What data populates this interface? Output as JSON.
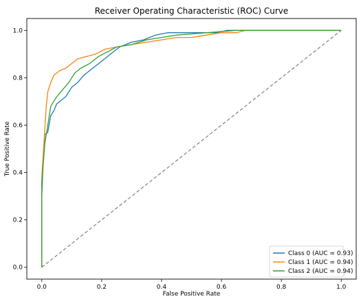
{
  "chart_data": {
    "type": "line",
    "title": "Receiver Operating Characteristic (ROC) Curve",
    "xlabel": "False Positive Rate",
    "ylabel": "True Positive Rate",
    "xlim": [
      -0.05,
      1.05
    ],
    "ylim": [
      -0.05,
      1.05
    ],
    "xticks": [
      "0.0",
      "0.2",
      "0.4",
      "0.6",
      "0.8",
      "1.0"
    ],
    "yticks": [
      "0.0",
      "0.2",
      "0.4",
      "0.6",
      "0.8",
      "1.0"
    ],
    "grid": false,
    "legend_position": "lower-right",
    "diagonal": {
      "x": [
        0,
        1
      ],
      "y": [
        0,
        1
      ],
      "color": "#808080",
      "style": "dashed"
    },
    "series": [
      {
        "name": "Class 0 (AUC = 0.93)",
        "color": "#1f77b4",
        "x": [
          0.0,
          0.0,
          0.005,
          0.01,
          0.02,
          0.03,
          0.04,
          0.05,
          0.06,
          0.08,
          0.1,
          0.12,
          0.14,
          0.17,
          0.2,
          0.23,
          0.26,
          0.3,
          0.34,
          0.38,
          0.42,
          0.46,
          0.52,
          0.58,
          0.62,
          0.7,
          0.8,
          0.9,
          1.0
        ],
        "y": [
          0.0,
          0.3,
          0.47,
          0.56,
          0.57,
          0.64,
          0.66,
          0.69,
          0.7,
          0.72,
          0.76,
          0.78,
          0.81,
          0.84,
          0.87,
          0.9,
          0.93,
          0.95,
          0.96,
          0.98,
          0.99,
          0.99,
          0.99,
          0.99,
          1.0,
          1.0,
          1.0,
          1.0,
          1.0
        ]
      },
      {
        "name": "Class 1 (AUC = 0.94)",
        "color": "#ff7f0e",
        "x": [
          0.0,
          0.0,
          0.005,
          0.01,
          0.015,
          0.02,
          0.03,
          0.04,
          0.06,
          0.08,
          0.1,
          0.12,
          0.15,
          0.18,
          0.21,
          0.25,
          0.3,
          0.35,
          0.4,
          0.45,
          0.5,
          0.55,
          0.6,
          0.65,
          0.68,
          0.8,
          0.9,
          1.0
        ],
        "y": [
          0.0,
          0.38,
          0.48,
          0.58,
          0.68,
          0.74,
          0.78,
          0.81,
          0.83,
          0.84,
          0.86,
          0.88,
          0.89,
          0.9,
          0.92,
          0.93,
          0.94,
          0.95,
          0.96,
          0.97,
          0.97,
          0.98,
          0.99,
          0.99,
          1.0,
          1.0,
          1.0,
          1.0
        ]
      },
      {
        "name": "Class 2 (AUC = 0.94)",
        "color": "#2ca02c",
        "x": [
          0.0,
          0.0,
          0.005,
          0.01,
          0.02,
          0.03,
          0.05,
          0.07,
          0.09,
          0.11,
          0.13,
          0.16,
          0.19,
          0.22,
          0.25,
          0.3,
          0.35,
          0.4,
          0.45,
          0.5,
          0.55,
          0.6,
          0.65,
          0.7,
          0.8,
          0.9,
          1.0
        ],
        "y": [
          0.0,
          0.35,
          0.44,
          0.52,
          0.6,
          0.68,
          0.72,
          0.75,
          0.78,
          0.82,
          0.84,
          0.86,
          0.89,
          0.91,
          0.93,
          0.94,
          0.96,
          0.97,
          0.98,
          0.985,
          0.99,
          0.995,
          1.0,
          1.0,
          1.0,
          1.0,
          1.0
        ]
      }
    ]
  }
}
